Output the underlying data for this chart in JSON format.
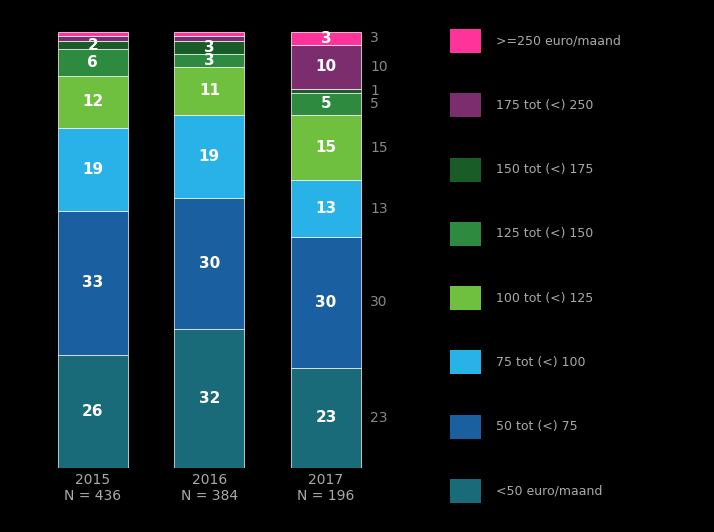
{
  "categories": [
    "2015\nN = 436",
    "2016\nN = 384",
    "2017\nN = 196"
  ],
  "segments": [
    {
      "label": "<50 euro/maand",
      "color": "#1a6b7a",
      "values": [
        26,
        32,
        23
      ]
    },
    {
      "label": "50 tot (<) 75",
      "color": "#1a5fa0",
      "values": [
        33,
        30,
        30
      ]
    },
    {
      "label": "75 tot (<) 100",
      "color": "#29b2e8",
      "values": [
        19,
        19,
        13
      ]
    },
    {
      "label": "100 tot (<) 125",
      "color": "#70c040",
      "values": [
        12,
        11,
        15
      ]
    },
    {
      "label": "125 tot (<) 150",
      "color": "#2d8a3e",
      "values": [
        6,
        3,
        5
      ]
    },
    {
      "label": "150 tot (<) 175",
      "color": "#1a5c28",
      "values": [
        2,
        3,
        1
      ]
    },
    {
      "label": "175 tot (<) 250",
      "color": "#7b2d6e",
      "values": [
        1,
        1,
        10
      ]
    },
    {
      "label": ">=250 euro/maand",
      "color": "#ff3399",
      "values": [
        1,
        1,
        3
      ]
    }
  ],
  "bar_width": 0.6,
  "background_color": "#000000",
  "text_color": "#ffffff",
  "label_color_outside": "#888888",
  "bar_positions": [
    0,
    1,
    2
  ],
  "ylim": [
    0,
    100
  ],
  "xlim_left": -0.55,
  "xlim_right": 4.2,
  "figsize": [
    7.14,
    5.32
  ],
  "dpi": 100
}
